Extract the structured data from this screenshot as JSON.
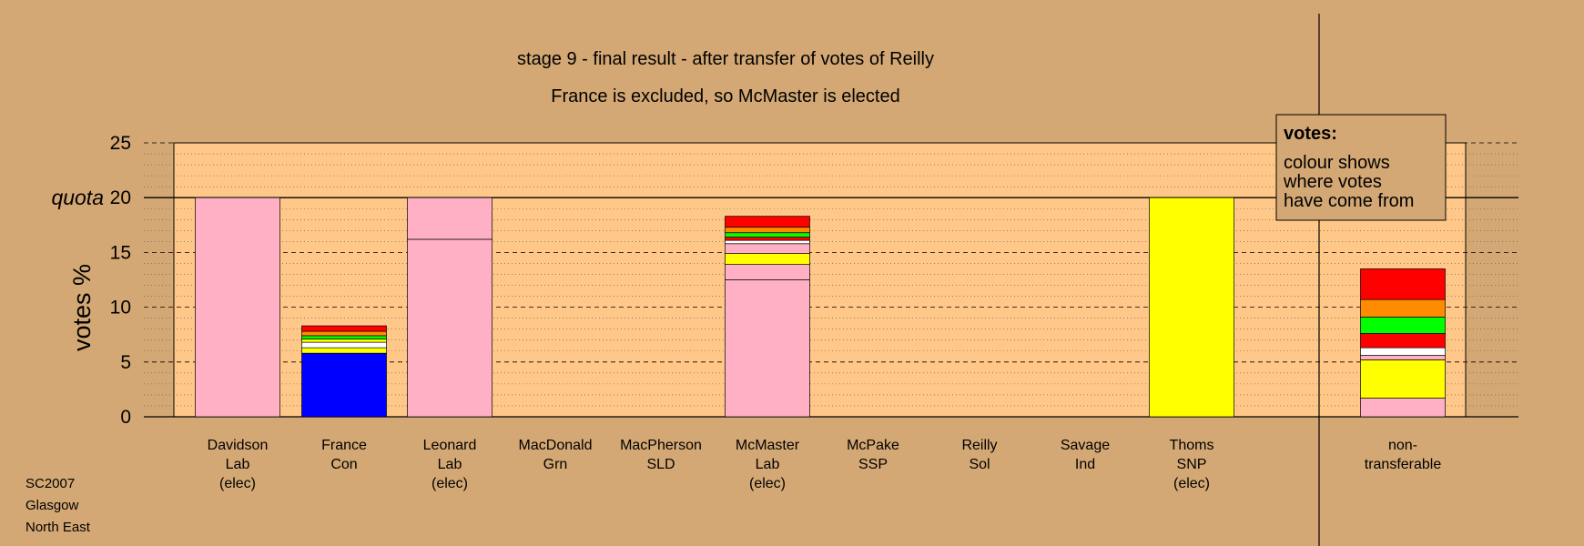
{
  "chart_data": {
    "type": "bar",
    "stacked": true,
    "title": "stage 9 - final result - after transfer of votes of Reilly",
    "subtitle": "France is excluded, so McMaster is elected",
    "ylabel": "votes %",
    "ylim": [
      0,
      25
    ],
    "yticks": [
      0,
      5,
      10,
      15,
      20,
      25
    ],
    "quota": {
      "label": "quota",
      "value": 20
    },
    "grid": true,
    "categories": [
      {
        "lines": [
          "Davidson",
          "Lab",
          "(elec)"
        ]
      },
      {
        "lines": [
          "France",
          "Con"
        ]
      },
      {
        "lines": [
          "Leonard",
          "Lab",
          "(elec)"
        ]
      },
      {
        "lines": [
          "MacDonald",
          "Grn"
        ]
      },
      {
        "lines": [
          "MacPherson",
          "SLD"
        ]
      },
      {
        "lines": [
          "McMaster",
          "Lab",
          "(elec)"
        ]
      },
      {
        "lines": [
          "McPake",
          "SSP"
        ]
      },
      {
        "lines": [
          "Reilly",
          "Sol"
        ]
      },
      {
        "lines": [
          "Savage",
          "Ind"
        ]
      },
      {
        "lines": [
          "Thoms",
          "SNP",
          "(elec)"
        ]
      },
      {
        "lines": [
          "non-",
          "transferable"
        ]
      }
    ],
    "bars": [
      [
        {
          "value": 20.0,
          "color": "#ffb0c4"
        }
      ],
      [
        {
          "value": 5.8,
          "color": "#0000ff"
        },
        {
          "value": 0.5,
          "color": "#ffff00"
        },
        {
          "value": 0.5,
          "color": "#ffffff"
        },
        {
          "value": 0.3,
          "color": "#ffff00"
        },
        {
          "value": 0.3,
          "color": "#00ff00"
        },
        {
          "value": 0.4,
          "color": "#ff8c00"
        },
        {
          "value": 0.5,
          "color": "#ff0000"
        }
      ],
      [
        {
          "value": 16.2,
          "color": "#ffb0c4"
        },
        {
          "value": 3.8,
          "color": "#ffb0c4"
        }
      ],
      [],
      [],
      [
        {
          "value": 12.5,
          "color": "#ffb0c4"
        },
        {
          "value": 1.4,
          "color": "#ffb0c4"
        },
        {
          "value": 1.0,
          "color": "#ffff00"
        },
        {
          "value": 0.9,
          "color": "#ffb0c4"
        },
        {
          "value": 0.3,
          "color": "#ffffff"
        },
        {
          "value": 0.3,
          "color": "#ff0000"
        },
        {
          "value": 0.4,
          "color": "#00ff00"
        },
        {
          "value": 0.5,
          "color": "#ff8c00"
        },
        {
          "value": 1.0,
          "color": "#ff0000"
        }
      ],
      [],
      [],
      [],
      [
        {
          "value": 20.0,
          "color": "#ffff00"
        }
      ],
      [
        {
          "value": 1.7,
          "color": "#ffb0c4"
        },
        {
          "value": 3.5,
          "color": "#ffff00"
        },
        {
          "value": 0.4,
          "color": "#ffb0c4"
        },
        {
          "value": 0.7,
          "color": "#ffffff"
        },
        {
          "value": 1.3,
          "color": "#ff0000"
        },
        {
          "value": 1.5,
          "color": "#00ff00"
        },
        {
          "value": 1.6,
          "color": "#ff8c00"
        },
        {
          "value": 2.8,
          "color": "#ff0000"
        }
      ]
    ],
    "legend": {
      "title": "votes:",
      "lines": [
        "colour shows",
        "where votes",
        "have come from"
      ],
      "position": "top-right"
    }
  },
  "footer": [
    "SC2007",
    "Glasgow",
    "North East"
  ],
  "colors": {
    "background": "#d4a874",
    "plot_area": "#ffc888",
    "frame": "#000000"
  }
}
